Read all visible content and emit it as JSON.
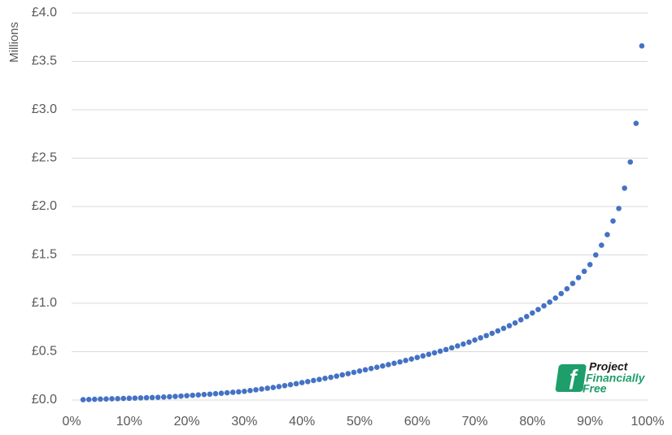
{
  "chart_data": {
    "type": "scatter",
    "y_label": "Millions",
    "color": "#4472c4",
    "grid": true,
    "xlim": [
      0,
      100
    ],
    "ylim": [
      0,
      4
    ],
    "xticks": [
      {
        "value": 0,
        "label": "0%"
      },
      {
        "value": 10,
        "label": "10%"
      },
      {
        "value": 20,
        "label": "20%"
      },
      {
        "value": 30,
        "label": "30%"
      },
      {
        "value": 40,
        "label": "40%"
      },
      {
        "value": 50,
        "label": "50%"
      },
      {
        "value": 60,
        "label": "60%"
      },
      {
        "value": 70,
        "label": "70%"
      },
      {
        "value": 80,
        "label": "80%"
      },
      {
        "value": 90,
        "label": "90%"
      },
      {
        "value": 100,
        "label": "100%"
      }
    ],
    "yticks": [
      {
        "value": 0,
        "label": "£0.0"
      },
      {
        "value": 0.5,
        "label": "£0.5"
      },
      {
        "value": 1,
        "label": "£1.0"
      },
      {
        "value": 1.5,
        "label": "£1.5"
      },
      {
        "value": 2,
        "label": "£2.0"
      },
      {
        "value": 2.5,
        "label": "£2.5"
      },
      {
        "value": 3,
        "label": "£3.0"
      },
      {
        "value": 3.5,
        "label": "£3.5"
      },
      {
        "value": 4,
        "label": "£4.0"
      }
    ],
    "x": [
      2,
      3,
      4,
      5,
      6,
      7,
      8,
      9,
      10,
      11,
      12,
      13,
      14,
      15,
      16,
      17,
      18,
      19,
      20,
      21,
      22,
      23,
      24,
      25,
      26,
      27,
      28,
      29,
      30,
      31,
      32,
      33,
      34,
      35,
      36,
      37,
      38,
      39,
      40,
      41,
      42,
      43,
      44,
      45,
      46,
      47,
      48,
      49,
      50,
      51,
      52,
      53,
      54,
      55,
      56,
      57,
      58,
      59,
      60,
      61,
      62,
      63,
      64,
      65,
      66,
      67,
      68,
      69,
      70,
      71,
      72,
      73,
      74,
      75,
      76,
      77,
      78,
      79,
      80,
      81,
      82,
      83,
      84,
      85,
      86,
      87,
      88,
      89,
      90,
      91,
      92,
      93,
      94,
      95,
      96,
      97,
      98,
      99
    ],
    "values": [
      0.004,
      0.006,
      0.008,
      0.01,
      0.011,
      0.013,
      0.014,
      0.016,
      0.018,
      0.02,
      0.022,
      0.024,
      0.026,
      0.028,
      0.031,
      0.034,
      0.037,
      0.041,
      0.045,
      0.049,
      0.053,
      0.057,
      0.061,
      0.066,
      0.07,
      0.075,
      0.08,
      0.085,
      0.09,
      0.098,
      0.106,
      0.114,
      0.122,
      0.13,
      0.139,
      0.149,
      0.159,
      0.169,
      0.18,
      0.191,
      0.202,
      0.213,
      0.224,
      0.235,
      0.247,
      0.26,
      0.273,
      0.286,
      0.3,
      0.313,
      0.326,
      0.339,
      0.352,
      0.366,
      0.38,
      0.394,
      0.409,
      0.424,
      0.44,
      0.456,
      0.472,
      0.488,
      0.505,
      0.522,
      0.54,
      0.559,
      0.578,
      0.598,
      0.62,
      0.643,
      0.666,
      0.69,
      0.715,
      0.741,
      0.768,
      0.797,
      0.829,
      0.863,
      0.9,
      0.936,
      0.973,
      1.012,
      1.054,
      1.1,
      1.15,
      1.205,
      1.265,
      1.33,
      1.4,
      1.5,
      1.6,
      1.71,
      1.85,
      1.98,
      2.19,
      2.46,
      2.86,
      3.66
    ]
  },
  "logo": {
    "line1": "Project",
    "line2": "Financially",
    "line3": "Free"
  }
}
